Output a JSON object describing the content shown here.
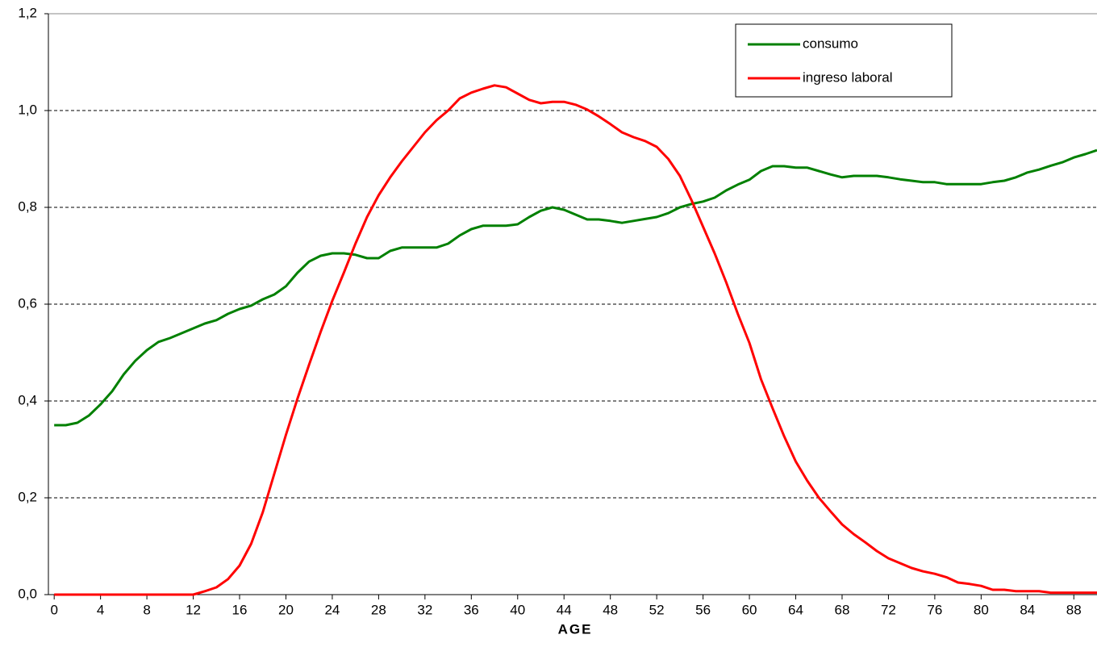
{
  "chart_data": {
    "type": "line",
    "x_label": "AGE",
    "x": [
      0,
      1,
      2,
      3,
      4,
      5,
      6,
      7,
      8,
      9,
      10,
      11,
      12,
      13,
      14,
      15,
      16,
      17,
      18,
      19,
      20,
      21,
      22,
      23,
      24,
      25,
      26,
      27,
      28,
      29,
      30,
      31,
      32,
      33,
      34,
      35,
      36,
      37,
      38,
      39,
      40,
      41,
      42,
      43,
      44,
      45,
      46,
      47,
      48,
      49,
      50,
      51,
      52,
      53,
      54,
      55,
      56,
      57,
      58,
      59,
      60,
      61,
      62,
      63,
      64,
      65,
      66,
      67,
      68,
      69,
      70,
      71,
      72,
      73,
      74,
      75,
      76,
      77,
      78,
      79,
      80,
      81,
      82,
      83,
      84,
      85,
      86,
      87,
      88,
      89,
      90
    ],
    "series": [
      {
        "name": "consumo",
        "color": "#008000",
        "values": [
          0.35,
          0.35,
          0.355,
          0.37,
          0.393,
          0.42,
          0.455,
          0.483,
          0.505,
          0.522,
          0.53,
          0.54,
          0.55,
          0.56,
          0.567,
          0.58,
          0.59,
          0.597,
          0.61,
          0.62,
          0.637,
          0.665,
          0.688,
          0.7,
          0.705,
          0.705,
          0.702,
          0.695,
          0.695,
          0.71,
          0.717,
          0.717,
          0.717,
          0.717,
          0.725,
          0.742,
          0.755,
          0.762,
          0.762,
          0.762,
          0.765,
          0.78,
          0.793,
          0.8,
          0.795,
          0.785,
          0.775,
          0.775,
          0.772,
          0.768,
          0.772,
          0.776,
          0.78,
          0.788,
          0.8,
          0.807,
          0.812,
          0.82,
          0.835,
          0.847,
          0.857,
          0.875,
          0.885,
          0.885,
          0.882,
          0.882,
          0.875,
          0.868,
          0.862,
          0.865,
          0.865,
          0.865,
          0.862,
          0.858,
          0.855,
          0.852,
          0.852,
          0.848,
          0.848,
          0.848,
          0.848,
          0.852,
          0.855,
          0.862,
          0.872,
          0.878,
          0.886,
          0.893,
          0.903,
          0.91,
          0.918
        ]
      },
      {
        "name": "ingreso laboral",
        "color": "#ff0000",
        "values": [
          0,
          0,
          0,
          0,
          0,
          0,
          0,
          0,
          0,
          0,
          0,
          0,
          0,
          0.007,
          0.015,
          0.032,
          0.06,
          0.105,
          0.17,
          0.25,
          0.33,
          0.405,
          0.475,
          0.543,
          0.607,
          0.665,
          0.725,
          0.78,
          0.825,
          0.862,
          0.895,
          0.925,
          0.955,
          0.98,
          1.0,
          1.025,
          1.037,
          1.045,
          1.052,
          1.048,
          1.035,
          1.022,
          1.015,
          1.018,
          1.018,
          1.012,
          1.002,
          0.988,
          0.972,
          0.955,
          0.945,
          0.937,
          0.925,
          0.9,
          0.865,
          0.815,
          0.76,
          0.705,
          0.645,
          0.58,
          0.52,
          0.445,
          0.385,
          0.327,
          0.275,
          0.235,
          0.2,
          0.172,
          0.145,
          0.125,
          0.108,
          0.09,
          0.075,
          0.065,
          0.055,
          0.048,
          0.043,
          0.036,
          0.025,
          0.022,
          0.018,
          0.01,
          0.01,
          0.007,
          0.007,
          0.007,
          0.004,
          0.004,
          0.004,
          0.004,
          0.004
        ]
      }
    ],
    "xlim": [
      -0.5,
      90
    ],
    "xticks": [
      0,
      4,
      8,
      12,
      16,
      20,
      24,
      28,
      32,
      36,
      40,
      44,
      48,
      52,
      56,
      60,
      64,
      68,
      72,
      76,
      80,
      84,
      88
    ],
    "ylim": [
      0,
      1.2
    ],
    "yticks": [
      {
        "value": 0,
        "label": "0,0"
      },
      {
        "value": 0.2,
        "label": "0,2"
      },
      {
        "value": 0.4,
        "label": "0,4"
      },
      {
        "value": 0.6,
        "label": "0,6"
      },
      {
        "value": 0.8,
        "label": "0,8"
      },
      {
        "value": 1.0,
        "label": "1,0"
      },
      {
        "value": 1.2,
        "label": "1,2"
      }
    ],
    "grid": true,
    "legend": "top-right"
  }
}
